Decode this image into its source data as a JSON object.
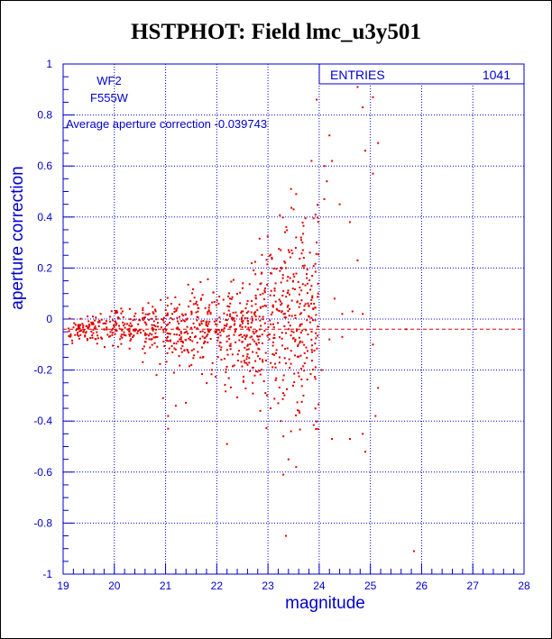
{
  "chart_data": {
    "type": "scatter",
    "title": "HSTPHOT: Field lmc_u3y501",
    "xlabel": "magnitude",
    "ylabel": "aperture correction",
    "xlim": [
      19,
      28
    ],
    "ylim": [
      -1,
      1
    ],
    "x_ticks": [
      "19",
      "20",
      "21",
      "22",
      "23",
      "24",
      "25",
      "26",
      "27",
      "28"
    ],
    "y_ticks": [
      "-1",
      "-0.8",
      "-0.6",
      "-0.4",
      "-0.2",
      "0",
      "0.2",
      "0.4",
      "0.6",
      "0.8",
      "1"
    ],
    "grid": "dotted",
    "annotations": [
      "WF2",
      "F555W",
      "Average aperture correction -0.039743"
    ],
    "stats_box": {
      "label": "ENTRIES",
      "value": "1041"
    },
    "reference_line": {
      "y": -0.039743,
      "style": "dashed"
    },
    "colors": {
      "text": "#0000cc",
      "axis": "#0000cc",
      "grid": "#0000cc",
      "points": "#dd0000",
      "frame": "#000000"
    },
    "points_described": [
      [
        24.75,
        0.91
      ],
      [
        24.85,
        0.83
      ],
      [
        25.05,
        0.87
      ],
      [
        23.95,
        0.86
      ],
      [
        24.2,
        0.72
      ],
      [
        24.9,
        0.66
      ],
      [
        25.15,
        0.69
      ],
      [
        23.85,
        0.62
      ],
      [
        24.1,
        0.6
      ],
      [
        24.25,
        0.62
      ],
      [
        25.05,
        0.57
      ],
      [
        24.15,
        0.54
      ],
      [
        23.45,
        0.51
      ],
      [
        23.55,
        0.49
      ],
      [
        24.1,
        0.47
      ],
      [
        24.4,
        0.45
      ],
      [
        23.5,
        0.43
      ],
      [
        24.6,
        0.38
      ],
      [
        23.55,
        0.32
      ],
      [
        23.65,
        0.31
      ],
      [
        23.95,
        0.3
      ],
      [
        24.75,
        0.23
      ],
      [
        24.3,
        0.08
      ],
      [
        24.45,
        0.02
      ],
      [
        24.65,
        0.03
      ],
      [
        24.85,
        0.02
      ],
      [
        24.2,
        -0.08
      ],
      [
        24.45,
        -0.07
      ],
      [
        24.05,
        -0.2
      ],
      [
        25.05,
        -0.1
      ],
      [
        25.15,
        -0.27
      ],
      [
        25.1,
        -0.38
      ],
      [
        24.9,
        -0.52
      ],
      [
        24.25,
        -0.47
      ],
      [
        24.6,
        -0.47
      ],
      [
        24.85,
        -0.45
      ],
      [
        23.35,
        -0.85
      ],
      [
        25.85,
        -0.91
      ],
      [
        25.7,
        -0.04
      ],
      [
        23.3,
        -0.61
      ],
      [
        23.4,
        -0.55
      ],
      [
        23.55,
        -0.58
      ],
      [
        23.3,
        -0.46
      ],
      [
        23.45,
        -0.44
      ],
      [
        23.25,
        -0.4
      ],
      [
        22.2,
        -0.49
      ],
      [
        21.05,
        -0.43
      ],
      [
        21.05,
        -0.38
      ],
      [
        21.2,
        -0.34
      ],
      [
        20.95,
        -0.31
      ],
      [
        22.7,
        -0.25
      ],
      [
        22.95,
        -0.29
      ],
      [
        23.05,
        -0.35
      ],
      [
        22.85,
        -0.36
      ],
      [
        23.15,
        -0.24
      ],
      [
        23.2,
        -0.33
      ],
      [
        23.25,
        0.27
      ],
      [
        23.35,
        0.2
      ],
      [
        23.7,
        0.2
      ],
      [
        23.7,
        0.24
      ],
      [
        23.3,
        0.11
      ],
      [
        23.85,
        0.13
      ],
      [
        23.9,
        0.06
      ],
      [
        23.15,
        0.14
      ],
      [
        22.9,
        0.1
      ]
    ]
  }
}
